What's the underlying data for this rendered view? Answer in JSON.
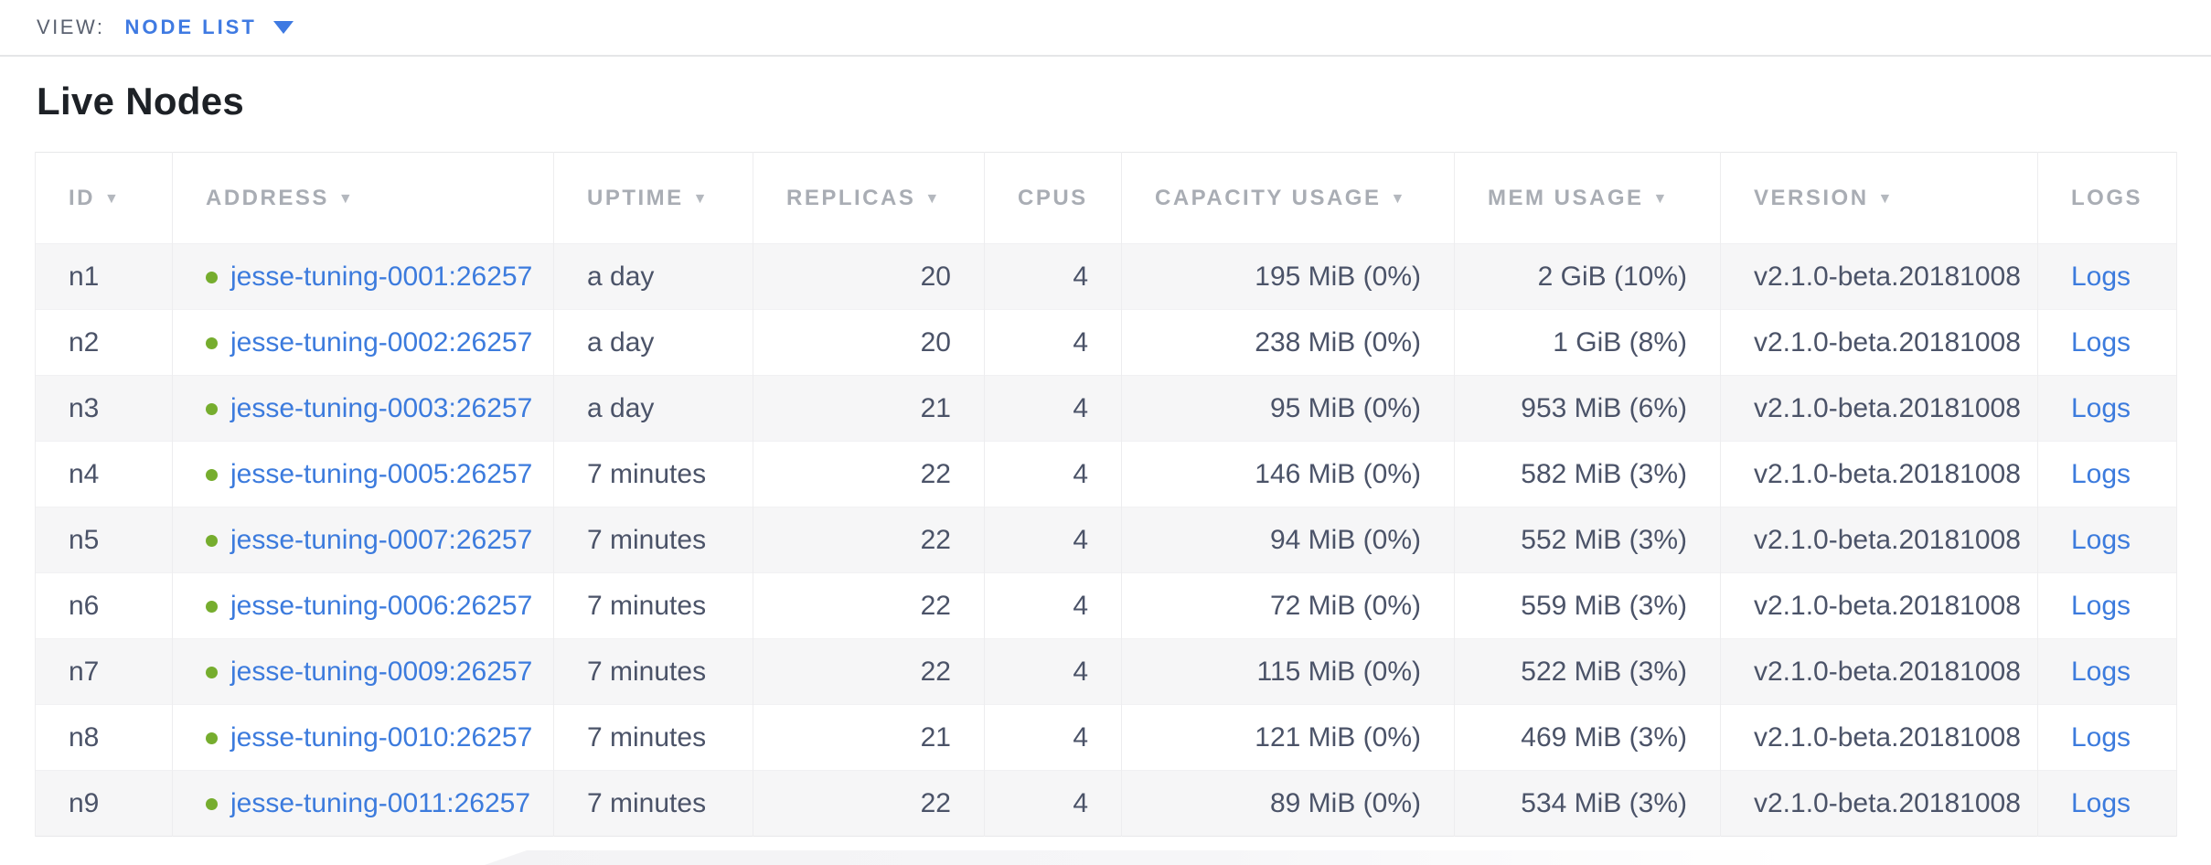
{
  "view_bar": {
    "label": "VIEW:",
    "selected": "NODE LIST"
  },
  "page": {
    "title": "Live Nodes"
  },
  "table": {
    "columns": [
      {
        "key": "id",
        "label": "ID",
        "sortable": true,
        "align": "left"
      },
      {
        "key": "address",
        "label": "ADDRESS",
        "sortable": true,
        "align": "left"
      },
      {
        "key": "uptime",
        "label": "UPTIME",
        "sortable": true,
        "align": "left"
      },
      {
        "key": "replicas",
        "label": "REPLICAS",
        "sortable": true,
        "align": "right"
      },
      {
        "key": "cpus",
        "label": "CPUS",
        "sortable": false,
        "align": "right"
      },
      {
        "key": "capacity",
        "label": "CAPACITY USAGE",
        "sortable": true,
        "align": "right"
      },
      {
        "key": "mem",
        "label": "MEM USAGE",
        "sortable": true,
        "align": "right"
      },
      {
        "key": "version",
        "label": "VERSION",
        "sortable": true,
        "align": "left"
      },
      {
        "key": "logs",
        "label": "LOGS",
        "sortable": false,
        "align": "left"
      }
    ],
    "sort_icon": "triangle-down",
    "node_status_icon": "green-dot",
    "rows": [
      {
        "id": "n1",
        "address": "jesse-tuning-0001:26257",
        "uptime": "a day",
        "replicas": "20",
        "cpus": "4",
        "capacity": "195 MiB (0%)",
        "mem": "2 GiB (10%)",
        "version": "v2.1.0-beta.20181008",
        "logs": "Logs"
      },
      {
        "id": "n2",
        "address": "jesse-tuning-0002:26257",
        "uptime": "a day",
        "replicas": "20",
        "cpus": "4",
        "capacity": "238 MiB (0%)",
        "mem": "1 GiB (8%)",
        "version": "v2.1.0-beta.20181008",
        "logs": "Logs"
      },
      {
        "id": "n3",
        "address": "jesse-tuning-0003:26257",
        "uptime": "a day",
        "replicas": "21",
        "cpus": "4",
        "capacity": "95 MiB (0%)",
        "mem": "953 MiB (6%)",
        "version": "v2.1.0-beta.20181008",
        "logs": "Logs"
      },
      {
        "id": "n4",
        "address": "jesse-tuning-0005:26257",
        "uptime": "7 minutes",
        "replicas": "22",
        "cpus": "4",
        "capacity": "146 MiB (0%)",
        "mem": "582 MiB (3%)",
        "version": "v2.1.0-beta.20181008",
        "logs": "Logs"
      },
      {
        "id": "n5",
        "address": "jesse-tuning-0007:26257",
        "uptime": "7 minutes",
        "replicas": "22",
        "cpus": "4",
        "capacity": "94 MiB (0%)",
        "mem": "552 MiB (3%)",
        "version": "v2.1.0-beta.20181008",
        "logs": "Logs"
      },
      {
        "id": "n6",
        "address": "jesse-tuning-0006:26257",
        "uptime": "7 minutes",
        "replicas": "22",
        "cpus": "4",
        "capacity": "72 MiB (0%)",
        "mem": "559 MiB (3%)",
        "version": "v2.1.0-beta.20181008",
        "logs": "Logs"
      },
      {
        "id": "n7",
        "address": "jesse-tuning-0009:26257",
        "uptime": "7 minutes",
        "replicas": "22",
        "cpus": "4",
        "capacity": "115 MiB (0%)",
        "mem": "522 MiB (3%)",
        "version": "v2.1.0-beta.20181008",
        "logs": "Logs"
      },
      {
        "id": "n8",
        "address": "jesse-tuning-0010:26257",
        "uptime": "7 minutes",
        "replicas": "21",
        "cpus": "4",
        "capacity": "121 MiB (0%)",
        "mem": "469 MiB (3%)",
        "version": "v2.1.0-beta.20181008",
        "logs": "Logs"
      },
      {
        "id": "n9",
        "address": "jesse-tuning-0011:26257",
        "uptime": "7 minutes",
        "replicas": "22",
        "cpus": "4",
        "capacity": "89 MiB (0%)",
        "mem": "534 MiB (3%)",
        "version": "v2.1.0-beta.20181008",
        "logs": "Logs"
      }
    ]
  },
  "colors": {
    "accent_blue": "#3f7ae2",
    "link_blue": "#3c7bdd",
    "node_live_green": "#76ad2e",
    "header_gray": "#a9adb4",
    "body_text": "#4b5368",
    "stripe": "#f6f6f7",
    "border": "#e7e8ea"
  }
}
